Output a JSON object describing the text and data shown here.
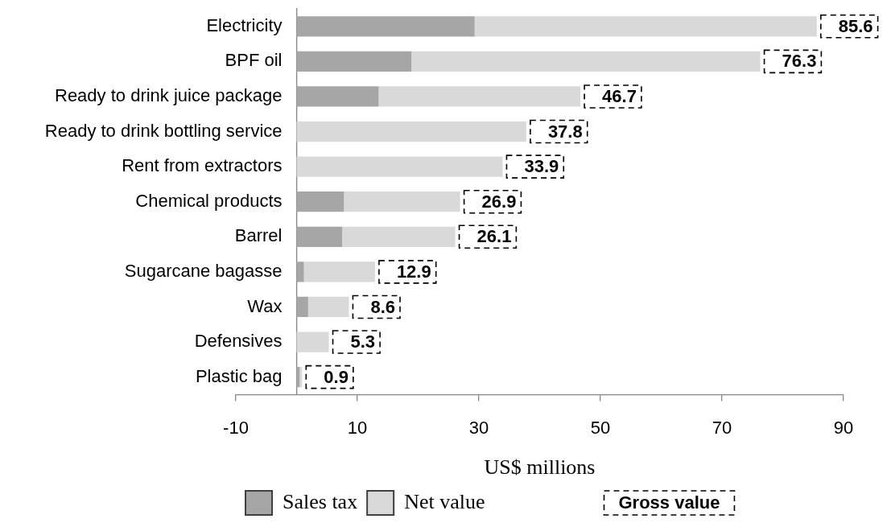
{
  "chart_data": {
    "type": "bar",
    "orientation": "horizontal",
    "stacked": true,
    "categories": [
      "Electricity",
      "BPF oil",
      "Ready to drink juice package",
      "Ready to drink bottling service",
      "Rent from extractors",
      "Chemical products",
      "Barrel",
      "Sugarcane bagasse",
      "Wax",
      "Defensives",
      "Plastic bag"
    ],
    "series": [
      {
        "name": "Sales tax",
        "color": "#a6a6a6",
        "values": [
          29.3,
          18.9,
          13.5,
          0,
          0,
          7.8,
          7.5,
          1.2,
          1.9,
          0,
          0.5
        ]
      },
      {
        "name": "Net value",
        "color": "#d9d9d9",
        "values": [
          56.3,
          57.4,
          33.2,
          37.8,
          33.9,
          19.1,
          18.6,
          11.7,
          6.7,
          5.3,
          0.4
        ]
      }
    ],
    "totals": [
      "85.6",
      "76.3",
      "46.7",
      "37.8",
      "33.9",
      "26.9",
      "26.1",
      "12.9",
      "8.6",
      "5.3",
      "0.9"
    ],
    "xlabel": "US$ millions",
    "xlim": [
      -10,
      90
    ],
    "xticks": [
      -10,
      10,
      30,
      50,
      70,
      90
    ],
    "grid": false,
    "legend": "bottom",
    "annotations": [
      "Gross value"
    ]
  }
}
